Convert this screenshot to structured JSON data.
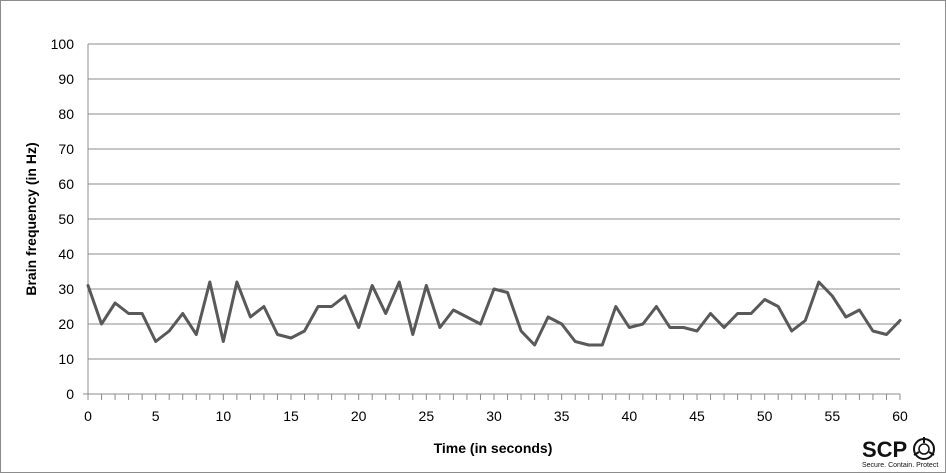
{
  "chart_data": {
    "type": "line",
    "title": "",
    "xlabel": "Time (in seconds)",
    "ylabel": "Brain frequency (in Hz)",
    "xlim": [
      0,
      60
    ],
    "ylim": [
      0,
      100
    ],
    "x_ticks": [
      0,
      5,
      10,
      15,
      20,
      25,
      30,
      35,
      40,
      45,
      50,
      55,
      60
    ],
    "y_ticks": [
      0,
      10,
      20,
      30,
      40,
      50,
      60,
      70,
      80,
      90,
      100
    ],
    "grid": "horizontal",
    "legend": "none",
    "series": [
      {
        "color": "#595959",
        "x": [
          0,
          1,
          2,
          3,
          4,
          5,
          6,
          7,
          8,
          9,
          10,
          11,
          12,
          13,
          14,
          15,
          16,
          17,
          18,
          19,
          20,
          21,
          22,
          23,
          24,
          25,
          26,
          27,
          28,
          29,
          30,
          31,
          32,
          33,
          34,
          35,
          36,
          37,
          38,
          39,
          40,
          41,
          42,
          43,
          44,
          45,
          46,
          47,
          48,
          49,
          50,
          51,
          52,
          53,
          54,
          55,
          56,
          57,
          58,
          59,
          60
        ],
        "values": [
          31,
          20,
          26,
          23,
          23,
          15,
          18,
          23,
          17,
          32,
          15,
          32,
          22,
          25,
          17,
          16,
          18,
          25,
          25,
          28,
          19,
          31,
          23,
          32,
          17,
          31,
          19,
          24,
          22,
          20,
          30,
          29,
          18,
          14,
          22,
          20,
          15,
          14,
          14,
          25,
          19,
          20,
          25,
          19,
          19,
          18,
          23,
          19,
          23,
          23,
          27,
          25,
          18,
          21,
          32,
          28,
          22,
          24,
          18,
          17,
          21
        ]
      }
    ]
  },
  "logo": {
    "name": "SCP",
    "tagline": "Secure. Contain. Protect"
  }
}
